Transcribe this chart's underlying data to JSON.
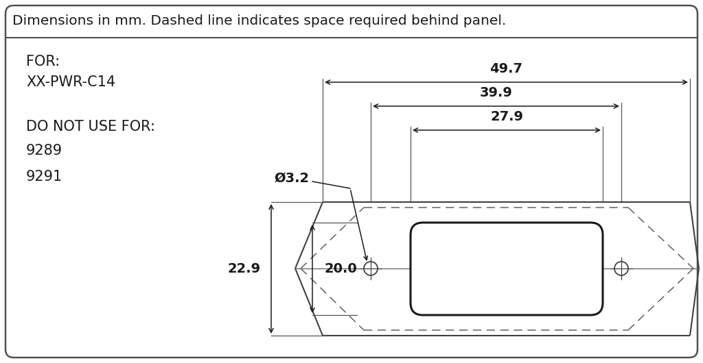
{
  "title": "Dimensions in mm. Dashed line indicates space required behind panel.",
  "for_text": "FOR:\nXX-PWR-C14",
  "donot_text": "DO NOT USE FOR:\n9289\n9291",
  "dim_497": "49.7",
  "dim_399": "39.9",
  "dim_279": "27.9",
  "dim_229": "22.9",
  "dim_200": "20.0",
  "dim_32": "Ø3.2",
  "bg_color": "#ffffff",
  "border_color": "#404040",
  "line_color": "#303030",
  "dim_color": "#404040",
  "text_color": "#1a1a1a",
  "font_size_title": 14.5,
  "font_size_labels": 15,
  "font_size_dims": 14
}
